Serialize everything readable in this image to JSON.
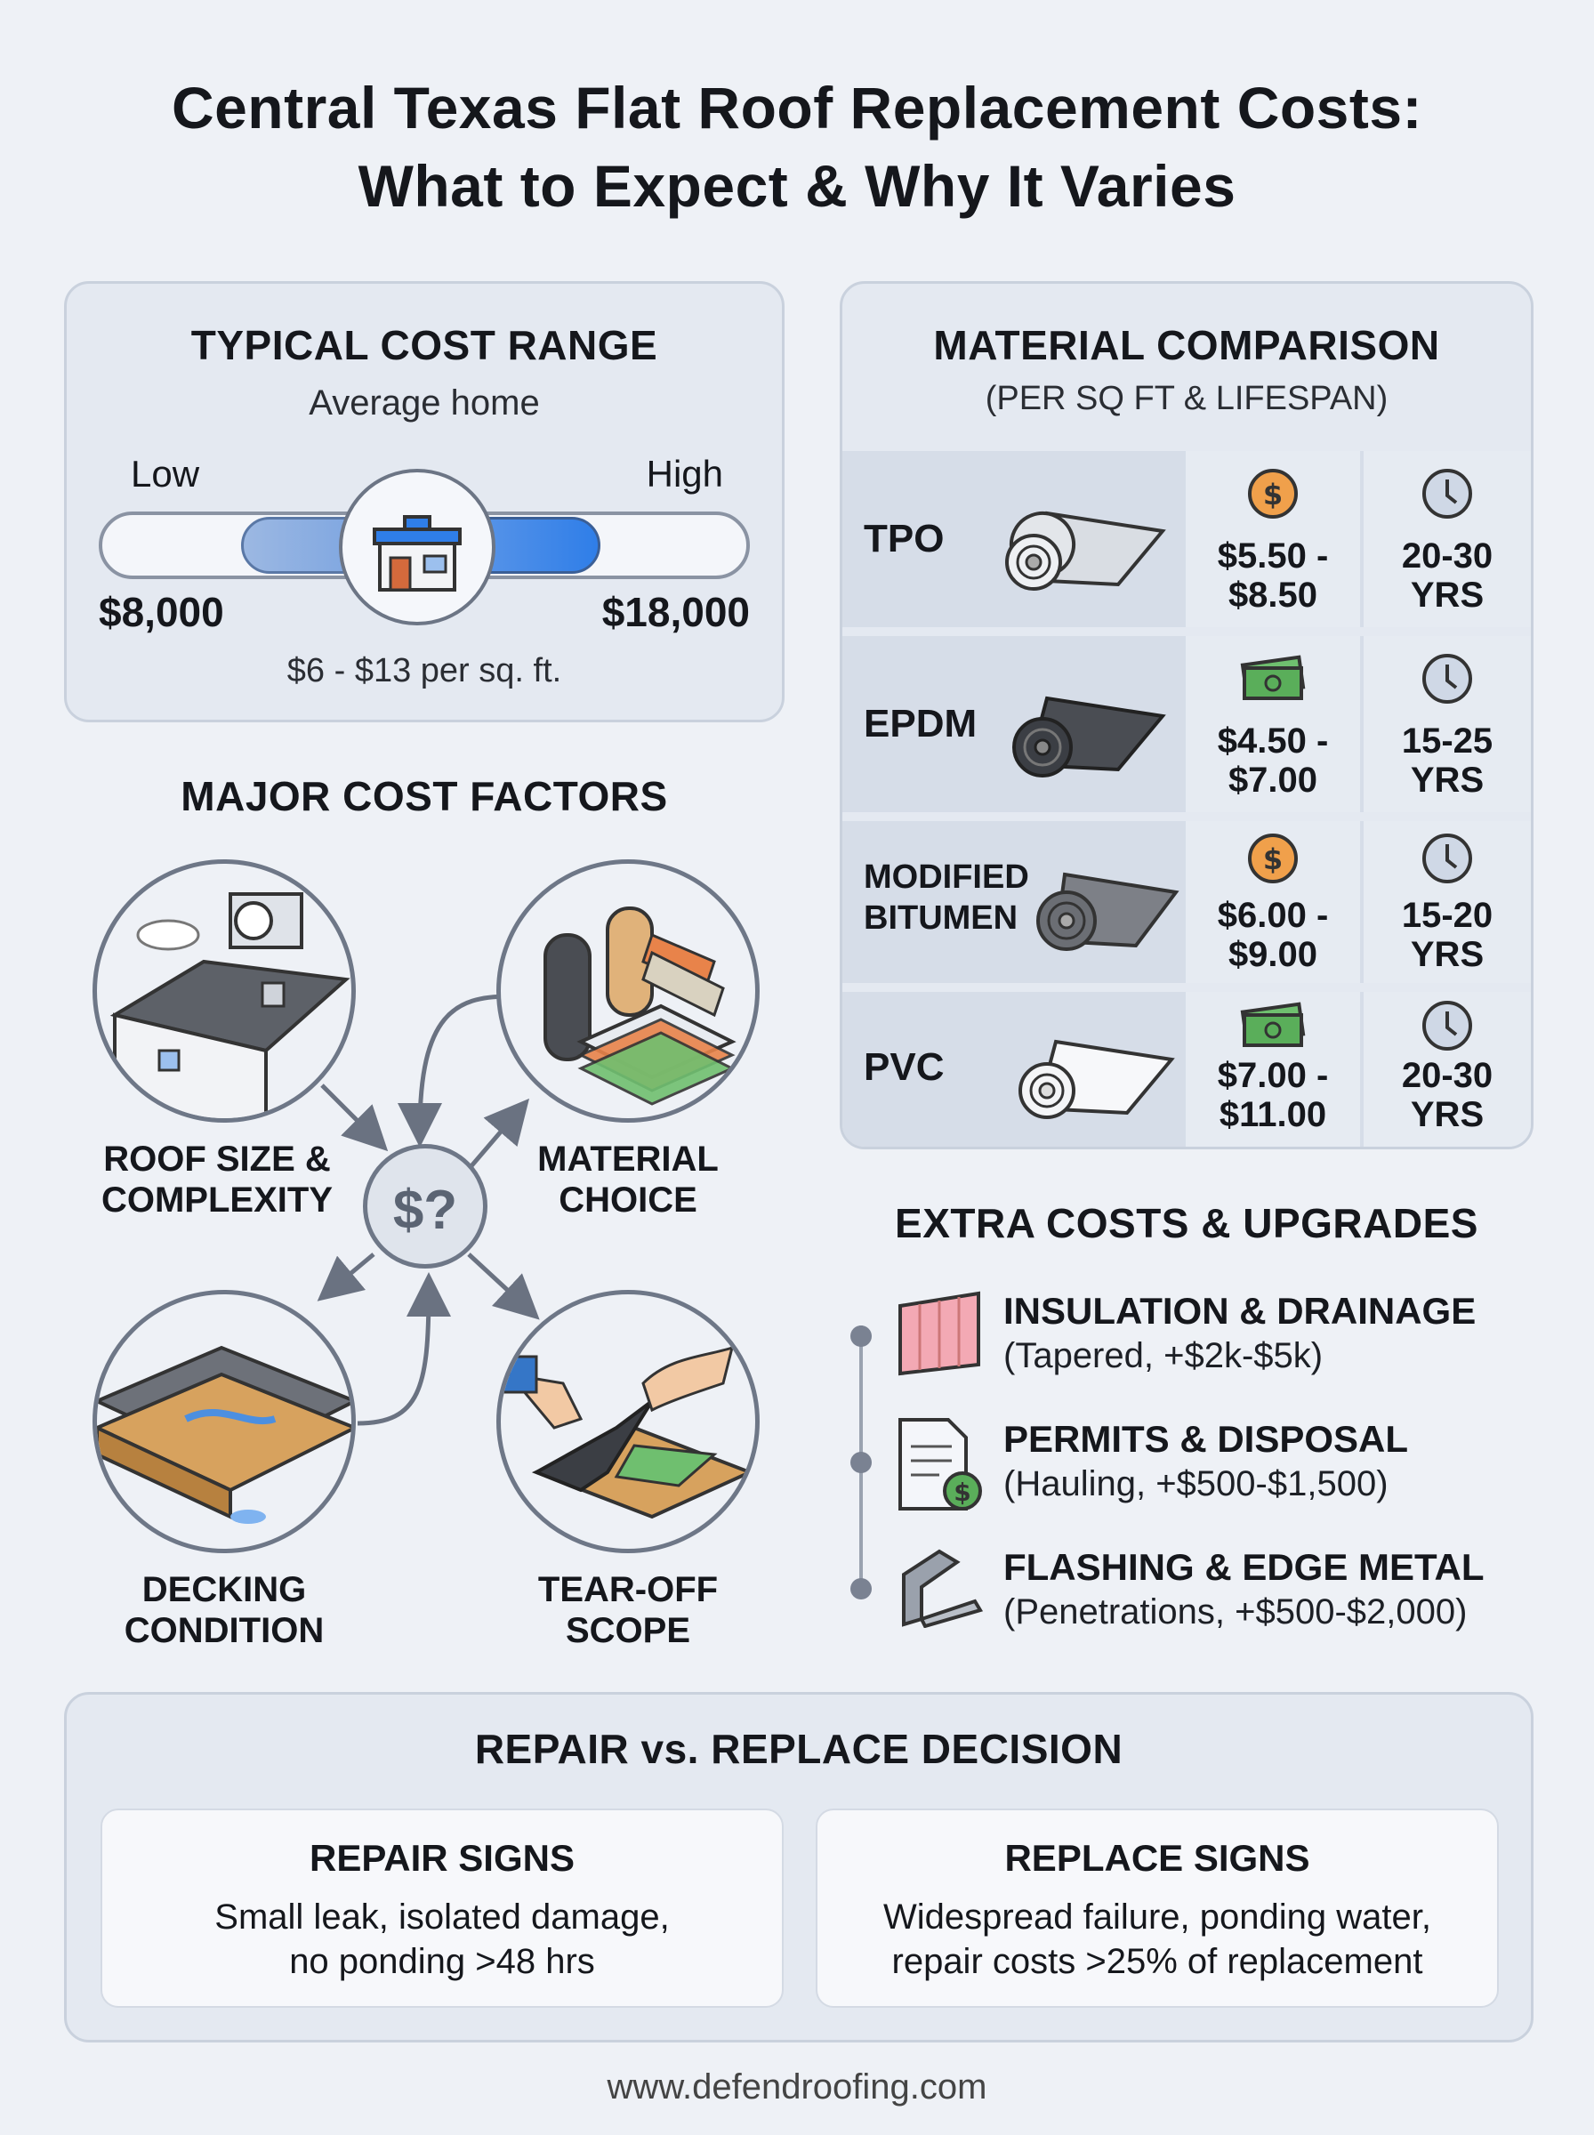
{
  "title_line1": "Central Texas Flat Roof Replacement Costs:",
  "title_line2": "What to Expect & Why It Varies",
  "cost_range": {
    "heading": "TYPICAL COST RANGE",
    "subheading": "Average home",
    "low_label": "Low",
    "high_label": "High",
    "low_value": "$8,000",
    "high_value": "$18,000",
    "per_sqft": "$6 - $13 per sq. ft."
  },
  "material_comparison": {
    "heading": "MATERIAL COMPARISON",
    "subheading": "(PER SQ FT & LIFESPAN)",
    "rows": [
      {
        "name": "TPO",
        "price_line1": "$5.50 -",
        "price_line2": "$8.50",
        "life_line1": "20-30",
        "life_line2": "YRS",
        "price_icon": "coin-icon",
        "roll_color": "#e3e6ea"
      },
      {
        "name": "EPDM",
        "price_line1": "$4.50 -",
        "price_line2": "$7.00",
        "life_line1": "15-25",
        "life_line2": "YRS",
        "price_icon": "cash-icon",
        "roll_color": "#3b3e44"
      },
      {
        "name_line1": "MODIFIED",
        "name_line2": "BITUMEN",
        "price_line1": "$6.00 -",
        "price_line2": "$9.00",
        "life_line1": "15-20",
        "life_line2": "YRS",
        "price_icon": "coin-icon",
        "roll_color": "#6b6e74"
      },
      {
        "name": "PVC",
        "price_line1": "$7.00 -",
        "price_line2": "$11.00",
        "life_line1": "20-30",
        "life_line2": "YRS",
        "price_icon": "cash-icon",
        "roll_color": "#f4f5f7"
      }
    ]
  },
  "cost_factors": {
    "heading": "MAJOR COST FACTORS",
    "center": "$?",
    "items": [
      {
        "line1": "ROOF SIZE &",
        "line2": "COMPLEXITY"
      },
      {
        "line1": "MATERIAL",
        "line2": "CHOICE"
      },
      {
        "line1": "DECKING",
        "line2": "CONDITION"
      },
      {
        "line1": "TEAR-OFF",
        "line2": "SCOPE"
      }
    ]
  },
  "extras": {
    "heading": "EXTRA COSTS & UPGRADES",
    "items": [
      {
        "title": "INSULATION & DRAINAGE",
        "detail": "(Tapered, +$2k-$5k)"
      },
      {
        "title": "PERMITS & DISPOSAL",
        "detail": "(Hauling, +$500-$1,500)"
      },
      {
        "title": "FLASHING & EDGE METAL",
        "detail": "(Penetrations, +$500-$2,000)"
      }
    ]
  },
  "decision": {
    "heading": "REPAIR vs. REPLACE DECISION",
    "repair": {
      "title": "REPAIR SIGNS",
      "line1": "Small leak, isolated damage,",
      "line2": "no ponding >48 hrs"
    },
    "replace": {
      "title": "REPLACE SIGNS",
      "line1": "Widespread failure, ponding water,",
      "line2": "repair costs >25% of replacement"
    }
  },
  "footer_url": "www.defendroofing.com",
  "colors": {
    "accent_blue": "#2f7ee8",
    "coin": "#f0a04b",
    "cash": "#5aae5a"
  }
}
